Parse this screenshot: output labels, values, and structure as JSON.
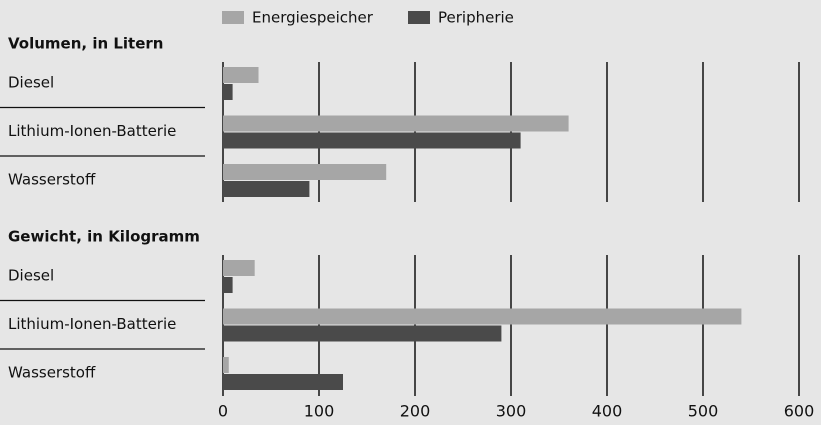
{
  "chart_data": {
    "type": "bar",
    "orientation": "horizontal",
    "legend": [
      {
        "name": "Energiespeicher",
        "color": "#a6a6a6"
      },
      {
        "name": "Peripherie",
        "color": "#4a4a4a"
      }
    ],
    "xlim": [
      0,
      600
    ],
    "xticks": [
      0,
      100,
      200,
      300,
      400,
      500,
      600
    ],
    "grid": true,
    "panels": [
      {
        "title": "Volumen, in Litern",
        "categories": [
          "Diesel",
          "Lithium-Ionen-Batterie",
          "Wasserstoff"
        ],
        "series": [
          {
            "values": [
              37,
              360,
              170
            ]
          },
          {
            "values": [
              10,
              310,
              90
            ]
          }
        ]
      },
      {
        "title": "Gewicht, in Kilogramm",
        "categories": [
          "Diesel",
          "Lithium-Ionen-Batterie",
          "Wasserstoff"
        ],
        "series": [
          {
            "values": [
              33,
              540,
              6
            ]
          },
          {
            "values": [
              10,
              290,
              125
            ]
          }
        ]
      }
    ]
  }
}
